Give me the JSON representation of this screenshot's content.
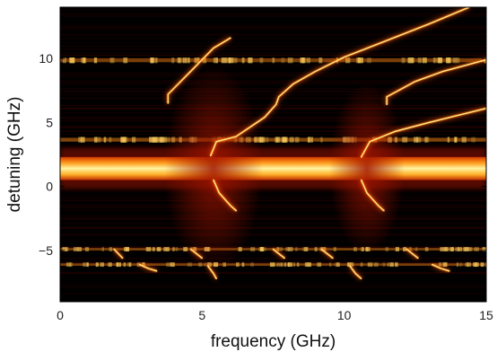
{
  "chart_data": {
    "type": "heatmap",
    "title": "",
    "xlabel": "frequency (GHz)",
    "ylabel": "detuning (GHz)",
    "xlim": [
      0,
      15
    ],
    "ylim": [
      -9,
      14
    ],
    "xticks": [
      0,
      5,
      10,
      15
    ],
    "yticks": [
      -5,
      0,
      5,
      10
    ],
    "colormap": [
      "#000000",
      "#3a0000",
      "#8a0a00",
      "#d23a00",
      "#ff8a1a",
      "#ffd040",
      "#fff6a0"
    ],
    "bands": [
      {
        "y_range": [
          0.5,
          2.3
        ],
        "intensity": 1.0
      },
      {
        "y_range": [
          3.5,
          3.8
        ],
        "intensity": 0.7
      },
      {
        "y_range": [
          9.7,
          10.0
        ],
        "intensity": 0.6
      },
      {
        "y_range": [
          -5.0,
          -4.8
        ],
        "intensity": 0.6
      },
      {
        "y_range": [
          -6.2,
          -6.0
        ],
        "intensity": 0.6
      }
    ],
    "series": [
      {
        "x": [
          3.8,
          3.8,
          4.6,
          5.4,
          6.0
        ],
        "y": [
          6.5,
          7.2,
          9.0,
          10.8,
          11.6
        ]
      },
      {
        "x": [
          5.3,
          5.5,
          6.2,
          7.2,
          7.6,
          7.7,
          8.2,
          9.0,
          10.0,
          11.5,
          13.0,
          14.4
        ],
        "y": [
          2.4,
          3.5,
          3.9,
          5.4,
          6.4,
          7.0,
          8.0,
          9.0,
          10.1,
          11.4,
          12.7,
          14.0
        ]
      },
      {
        "x": [
          11.5,
          11.5,
          12.5,
          13.5,
          15.0
        ],
        "y": [
          6.4,
          7.0,
          8.2,
          9.0,
          9.9
        ]
      },
      {
        "x": [
          10.6,
          10.9,
          11.8,
          13.0,
          15.0
        ],
        "y": [
          2.3,
          3.5,
          4.3,
          5.0,
          6.1
        ]
      },
      {
        "x": [
          5.4,
          5.6,
          6.0,
          6.2
        ],
        "y": [
          0.5,
          -0.5,
          -1.5,
          -1.9
        ]
      },
      {
        "x": [
          10.6,
          10.8,
          11.2,
          11.4
        ],
        "y": [
          0.5,
          -0.5,
          -1.5,
          -1.9
        ]
      },
      {
        "x": [
          5.2,
          5.4,
          5.5
        ],
        "y": [
          -6.2,
          -6.8,
          -7.2
        ]
      },
      {
        "x": [
          10.2,
          10.4,
          10.6
        ],
        "y": [
          -6.2,
          -6.8,
          -7.2
        ]
      },
      {
        "x": [
          2.8,
          3.1,
          3.4
        ],
        "y": [
          -6.1,
          -6.4,
          -6.6
        ]
      },
      {
        "x": [
          13.1,
          13.4,
          13.7
        ],
        "y": [
          -6.1,
          -6.4,
          -6.6
        ]
      },
      {
        "x": [
          1.9,
          2.2
        ],
        "y": [
          -4.9,
          -5.6
        ]
      },
      {
        "x": [
          4.6,
          5.0
        ],
        "y": [
          -4.9,
          -5.6
        ]
      },
      {
        "x": [
          7.5,
          7.9
        ],
        "y": [
          -4.9,
          -5.6
        ]
      },
      {
        "x": [
          9.2,
          9.6
        ],
        "y": [
          -4.9,
          -5.6
        ]
      },
      {
        "x": [
          12.2,
          12.6
        ],
        "y": [
          -4.9,
          -5.6
        ]
      }
    ]
  }
}
